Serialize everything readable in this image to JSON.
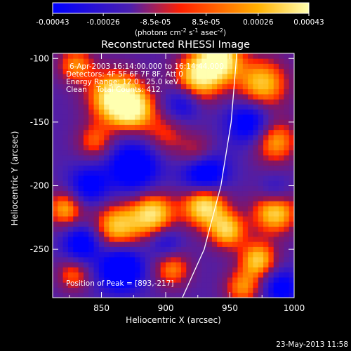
{
  "colorbar": {
    "tick_labels": [
      "-0.00043",
      "-0.00026",
      "-8.5e-05",
      "8.5e-05",
      "0.00026",
      "0.00043"
    ],
    "tick_values": [
      -0.00043,
      -0.00026,
      -8.5e-05,
      8.5e-05,
      0.00026,
      0.00043
    ],
    "range": [
      -0.00043,
      0.00043
    ],
    "unit_base": "(photons cm",
    "unit_exp1": "-2",
    "unit_mid": " s",
    "unit_exp2": "-1",
    "unit_tail": " asec",
    "unit_exp3": "-2",
    "unit_close": ")",
    "colors": [
      "#0000ff",
      "#4a1fb0",
      "#ff2000",
      "#ffb000",
      "#ffffb0"
    ]
  },
  "chart_data": {
    "type": "heatmap",
    "title": "Reconstructed RHESSI Image",
    "xlabel": "Heliocentric X (arcsec)",
    "ylabel": "Heliocentric Y (arcsec)",
    "xlim": [
      812,
      1000
    ],
    "ylim": [
      -288,
      -96
    ],
    "x_ticks": [
      850,
      900,
      950,
      1000
    ],
    "y_ticks": [
      -250,
      -200,
      -150,
      -100
    ],
    "x_tick_labels": [
      "850",
      "900",
      "950",
      "1000"
    ],
    "y_tick_labels": [
      "-250",
      "-200",
      "-150",
      "-100"
    ],
    "annotations": [
      "6-Apr-2003 16:14:00.000 to 16:14:44.000",
      "Detectors: 4F 5F 6F 7F 8F, Att 0",
      "Energy Range: 12.0 - 25.0 keV",
      "Clean    Total Counts: 412."
    ],
    "peak_label": "Position of Peak = [893,-217]",
    "peak": [
      893,
      -217
    ],
    "limb_curve": [
      [
        913,
        -288
      ],
      [
        930,
        -250
      ],
      [
        943,
        -200
      ],
      [
        951,
        -150
      ],
      [
        955,
        -100
      ],
      [
        955,
        -96
      ]
    ],
    "blobs": [
      [
        860,
        -130,
        1.0,
        14
      ],
      [
        875,
        -140,
        0.8,
        12
      ],
      [
        925,
        -115,
        0.9,
        13
      ],
      [
        942,
        -100,
        1.0,
        12
      ],
      [
        975,
        -120,
        0.8,
        14
      ],
      [
        985,
        -165,
        0.7,
        12
      ],
      [
        830,
        -105,
        0.6,
        10
      ],
      [
        845,
        -165,
        0.5,
        10
      ],
      [
        900,
        -160,
        0.4,
        12
      ],
      [
        925,
        -175,
        0.5,
        10
      ],
      [
        822,
        -218,
        0.7,
        10
      ],
      [
        862,
        -232,
        0.8,
        13
      ],
      [
        890,
        -222,
        0.9,
        12
      ],
      [
        930,
        -215,
        1.0,
        12
      ],
      [
        948,
        -235,
        0.8,
        10
      ],
      [
        985,
        -220,
        0.9,
        12
      ],
      [
        972,
        -258,
        0.8,
        10
      ],
      [
        960,
        -280,
        0.6,
        10
      ],
      [
        905,
        -265,
        0.6,
        10
      ],
      [
        828,
        -270,
        0.5,
        9
      ],
      [
        875,
        -185,
        -0.8,
        14
      ],
      [
        930,
        -190,
        -0.9,
        12
      ],
      [
        965,
        -150,
        -0.7,
        12
      ],
      [
        840,
        -200,
        -0.6,
        11
      ],
      [
        865,
        -265,
        -0.9,
        12
      ],
      [
        835,
        -245,
        -0.7,
        10
      ],
      [
        990,
        -280,
        -0.6,
        10
      ],
      [
        913,
        -135,
        -0.5,
        10
      ],
      [
        985,
        -205,
        -0.4,
        9
      ],
      [
        900,
        -245,
        -0.4,
        9
      ]
    ]
  },
  "footer": {
    "timestamp": "23-May-2013 11:58"
  }
}
